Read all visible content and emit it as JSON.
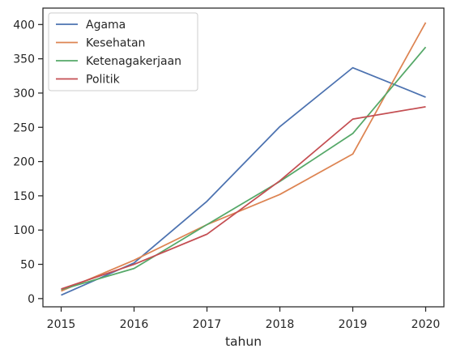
{
  "chart_data": {
    "type": "line",
    "title": "",
    "xlabel": "tahun",
    "ylabel": "",
    "x": [
      2015,
      2016,
      2017,
      2018,
      2019,
      2020
    ],
    "xlim": [
      2014.75,
      2020.25
    ],
    "ylim": [
      -12,
      424
    ],
    "yticks": [
      0,
      50,
      100,
      150,
      200,
      250,
      300,
      350,
      400
    ],
    "grid": false,
    "legend_position": "top-left",
    "series": [
      {
        "name": "Agama",
        "color": "#4c72b0",
        "values": [
          5,
          52,
          142,
          251,
          337,
          294
        ]
      },
      {
        "name": "Kesehatan",
        "color": "#dd8452",
        "values": [
          11,
          56,
          108,
          152,
          211,
          403
        ]
      },
      {
        "name": "Ketenagakerjaan",
        "color": "#55a868",
        "values": [
          13,
          44,
          108,
          171,
          241,
          367
        ]
      },
      {
        "name": "Politik",
        "color": "#c44e52",
        "values": [
          14,
          50,
          94,
          172,
          262,
          280
        ]
      }
    ]
  }
}
